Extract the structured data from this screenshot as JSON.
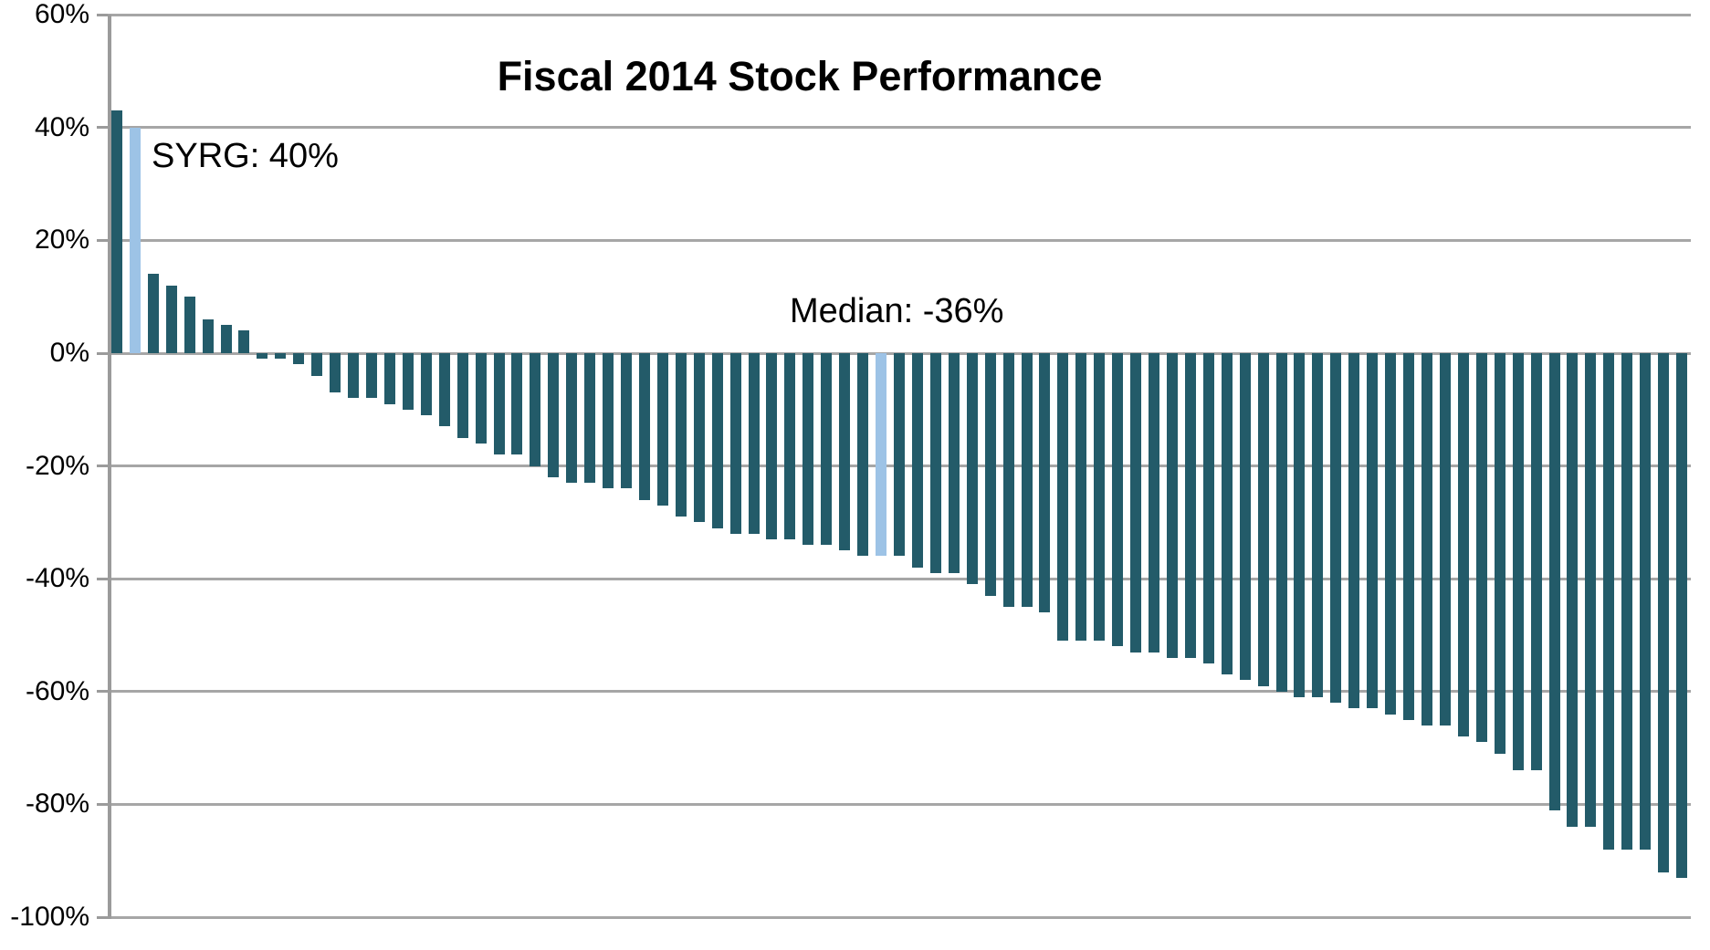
{
  "title": "Fiscal 2014 Stock Performance",
  "annotations": {
    "syrg_label": "SYRG: 40%",
    "median_label": "Median: -36%"
  },
  "chart_data": {
    "type": "bar",
    "title": "Fiscal 2014 Stock Performance",
    "xlabel": "",
    "ylabel": "",
    "ylim": [
      -100,
      60
    ],
    "grid": "horizontal",
    "legend": "none",
    "x_axis_labels": "none",
    "yticks": [
      {
        "label": "60%",
        "value": 60
      },
      {
        "label": "40%",
        "value": 40
      },
      {
        "label": "20%",
        "value": 20
      },
      {
        "label": "0%",
        "value": 0
      },
      {
        "label": "-20%",
        "value": -20
      },
      {
        "label": "-40%",
        "value": -40
      },
      {
        "label": "-60%",
        "value": -60
      },
      {
        "label": "-80%",
        "value": -80
      },
      {
        "label": "-100%",
        "value": -100
      }
    ],
    "values": [
      43,
      40,
      14,
      12,
      10,
      6,
      5,
      4,
      -1,
      -1,
      -2,
      -4,
      -7,
      -8,
      -8,
      -9,
      -10,
      -11,
      -13,
      -15,
      -16,
      -18,
      -18,
      -20,
      -22,
      -23,
      -23,
      -24,
      -24,
      -26,
      -27,
      -29,
      -30,
      -31,
      -32,
      -32,
      -33,
      -33,
      -34,
      -34,
      -35,
      -36,
      -36,
      -36,
      -38,
      -39,
      -39,
      -41,
      -43,
      -45,
      -45,
      -46,
      -51,
      -51,
      -51,
      -52,
      -53,
      -53,
      -54,
      -54,
      -55,
      -57,
      -58,
      -59,
      -60,
      -61,
      -61,
      -62,
      -63,
      -63,
      -64,
      -65,
      -66,
      -66,
      -68,
      -69,
      -71,
      -74,
      -74,
      -81,
      -84,
      -84,
      -88,
      -88,
      -88,
      -92,
      -93
    ],
    "highlighted_bars": [
      {
        "index": 1,
        "label": "SYRG",
        "value": 40,
        "annotation": "SYRG: 40%"
      },
      {
        "index": 42,
        "label": "Median",
        "value": -36,
        "annotation": "Median: -36%"
      }
    ],
    "colors": {
      "bar": "#235B69",
      "highlight": "#9DC3E6",
      "gridline": "#A6A6A6",
      "axis": "#9B9B9B",
      "text": "#000000",
      "background": "#FFFFFF"
    }
  }
}
